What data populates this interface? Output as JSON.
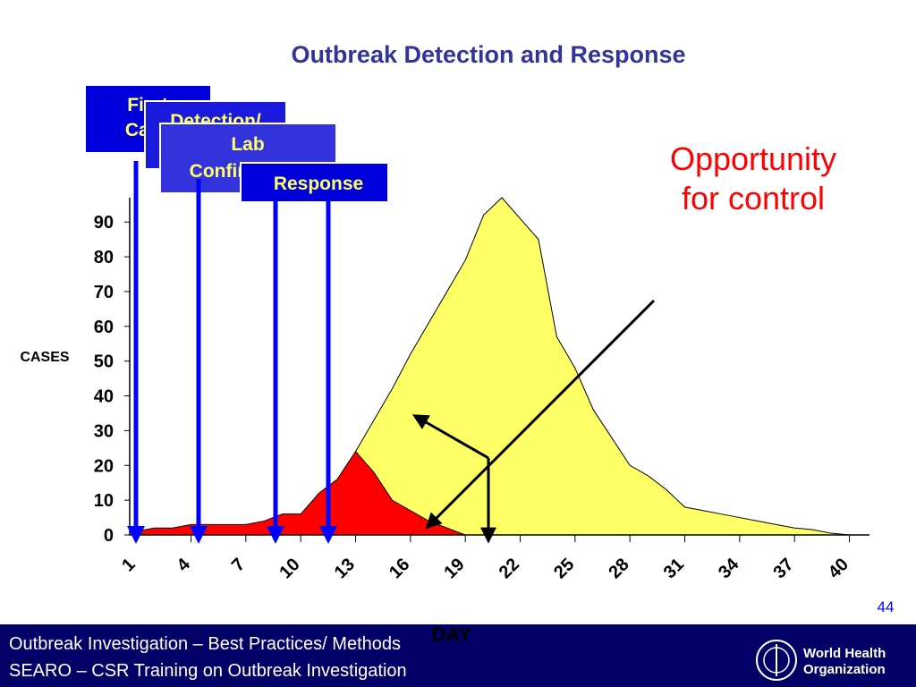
{
  "chart_data": {
    "type": "area",
    "title": "Outbreak Detection and Response",
    "ylabel": "CASES",
    "xlabel": "DAY",
    "annotations": [
      "First Case",
      "Detection/ Reporting",
      "Lab Confirmation",
      "Response",
      "Opportunity for control"
    ],
    "x": [
      1,
      2,
      3,
      4,
      5,
      6,
      7,
      8,
      9,
      10,
      11,
      12,
      13,
      14,
      15,
      16,
      17,
      18,
      19,
      20,
      21,
      22,
      23,
      24,
      25,
      26,
      27,
      28,
      29,
      30,
      31,
      32,
      33,
      34,
      35,
      36,
      37,
      38,
      39,
      40
    ],
    "series": [
      {
        "color": "#ffff66",
        "values": [
          null,
          null,
          null,
          null,
          null,
          null,
          null,
          null,
          null,
          null,
          null,
          null,
          24,
          33,
          42,
          52,
          61,
          70,
          79,
          92,
          97,
          91,
          85,
          57,
          48,
          36,
          28,
          20,
          17,
          13,
          8,
          7,
          6,
          5,
          4,
          3,
          2,
          1.5,
          0.5,
          0
        ]
      },
      {
        "color": "#ff0000",
        "values": [
          1,
          2,
          2,
          3,
          3,
          3,
          3,
          4,
          6,
          6,
          12,
          16,
          24,
          18,
          10,
          7,
          4,
          2,
          0,
          null,
          null,
          null,
          null,
          null,
          null,
          null,
          null,
          null,
          null,
          null,
          null,
          null,
          null,
          null,
          null,
          null,
          null,
          null,
          null,
          null
        ]
      }
    ],
    "xlim": [
      0.65,
      41.1
    ],
    "ylim": [
      0,
      97
    ],
    "xticks": [
      1,
      4,
      7,
      10,
      13,
      16,
      19,
      22,
      25,
      28,
      31,
      34,
      37,
      40
    ],
    "yticks": [
      0,
      10,
      20,
      30,
      40,
      50,
      60,
      70,
      80,
      90
    ]
  },
  "slide_number": "44",
  "footer": {
    "line1": "Outbreak Investigation – Best Practices/ Methods",
    "line2": "SEARO – CSR Training on Outbreak Investigation",
    "logo_line1": "World Health",
    "logo_line2": "Organization"
  }
}
